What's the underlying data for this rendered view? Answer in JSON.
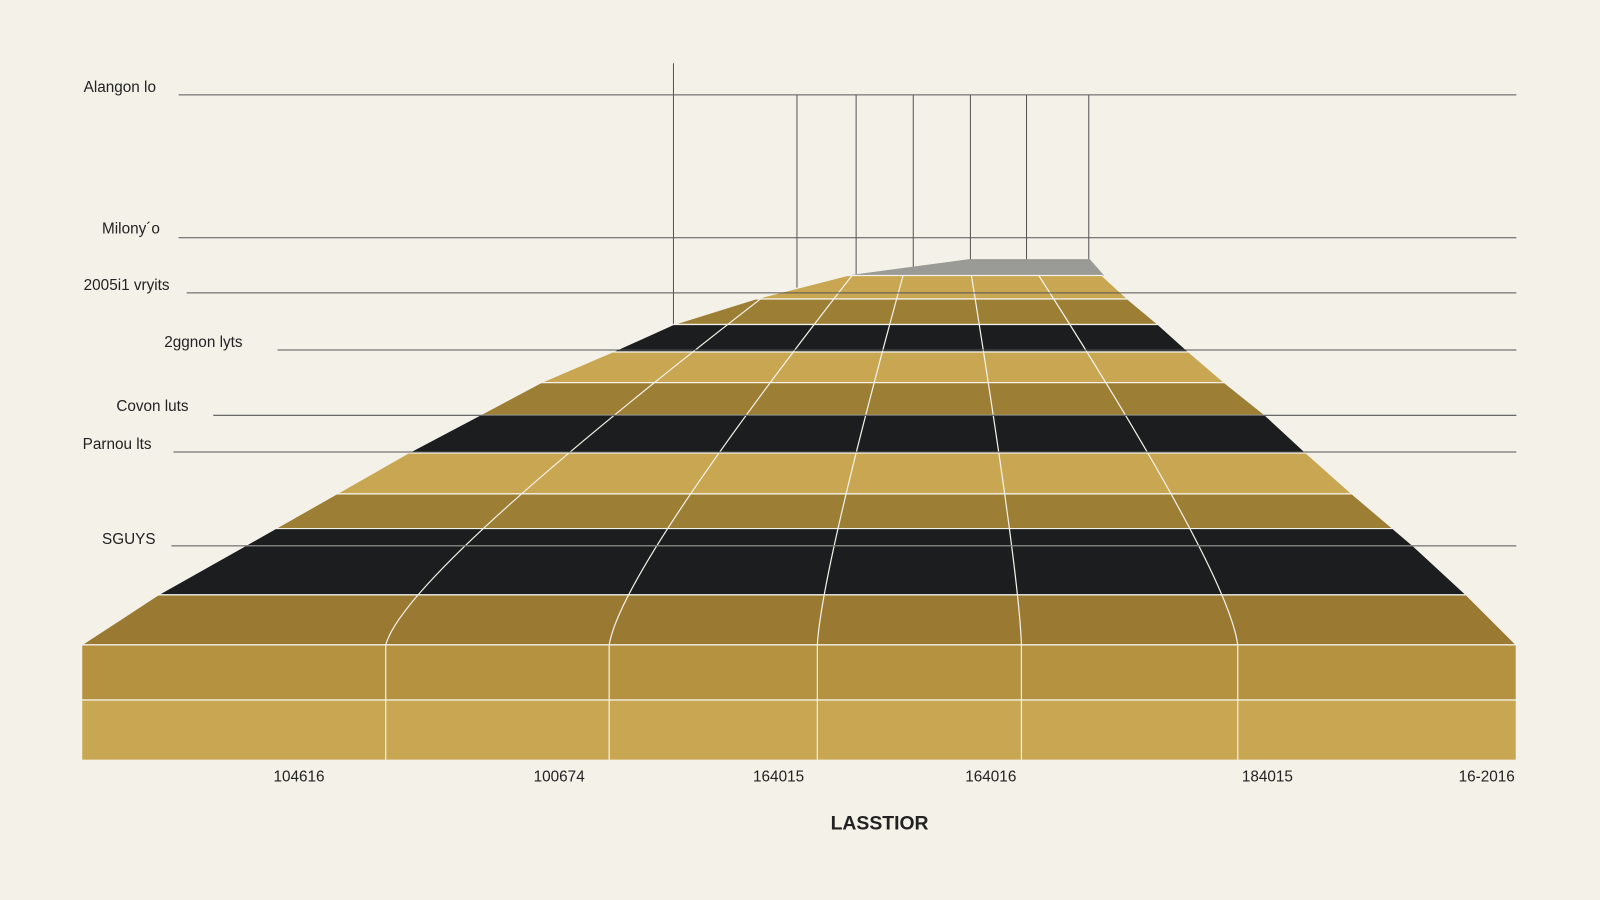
{
  "y_labels": [
    "Alangon lo",
    "Milony´o",
    "2005i1 vryits",
    "2ggnon lyts",
    "Covon luts",
    "Parnou lts",
    "SGUYS"
  ],
  "x_labels": [
    "104616",
    "100674",
    "164015",
    "164016",
    "184015",
    "16-2016"
  ],
  "x_axis_title": "LASSTIOR"
}
